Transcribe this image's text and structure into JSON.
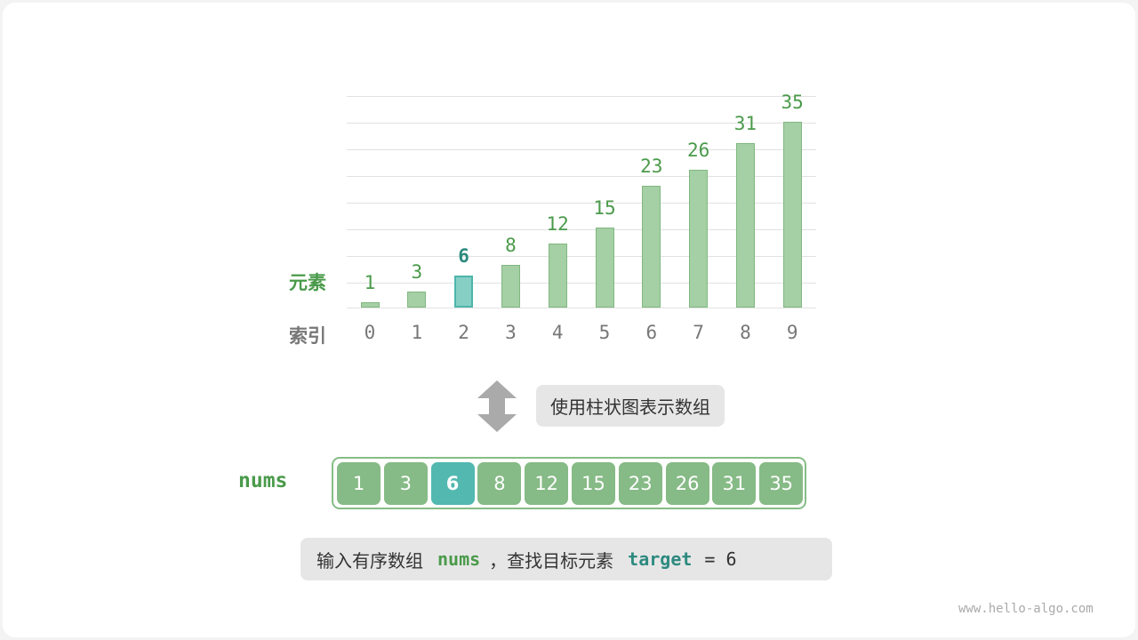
{
  "chart": {
    "values": [
      1,
      3,
      6,
      8,
      12,
      15,
      23,
      26,
      31,
      35
    ],
    "indices": [
      "0",
      "1",
      "2",
      "3",
      "4",
      "5",
      "6",
      "7",
      "8",
      "9"
    ],
    "highlight_index": 2,
    "row_label_elements": "元素",
    "row_label_index": "索引",
    "colors": {
      "bar": "#a5cfa5",
      "highlight": "#86cfc4",
      "label_green": "#4a9a4a",
      "label_teal": "#2e8a80"
    }
  },
  "arrow_icon": "double-vertical-arrow",
  "caption_bar_chart": "使用柱状图表示数组",
  "array": {
    "name": "nums",
    "values": [
      "1",
      "3",
      "6",
      "8",
      "12",
      "15",
      "23",
      "26",
      "31",
      "35"
    ]
  },
  "caption_input": {
    "part1": "输入有序数组",
    "nums": "nums",
    "part2": "，查找目标元素",
    "target": "target",
    "eq": "= 6"
  },
  "watermark": "www.hello-algo.com"
}
